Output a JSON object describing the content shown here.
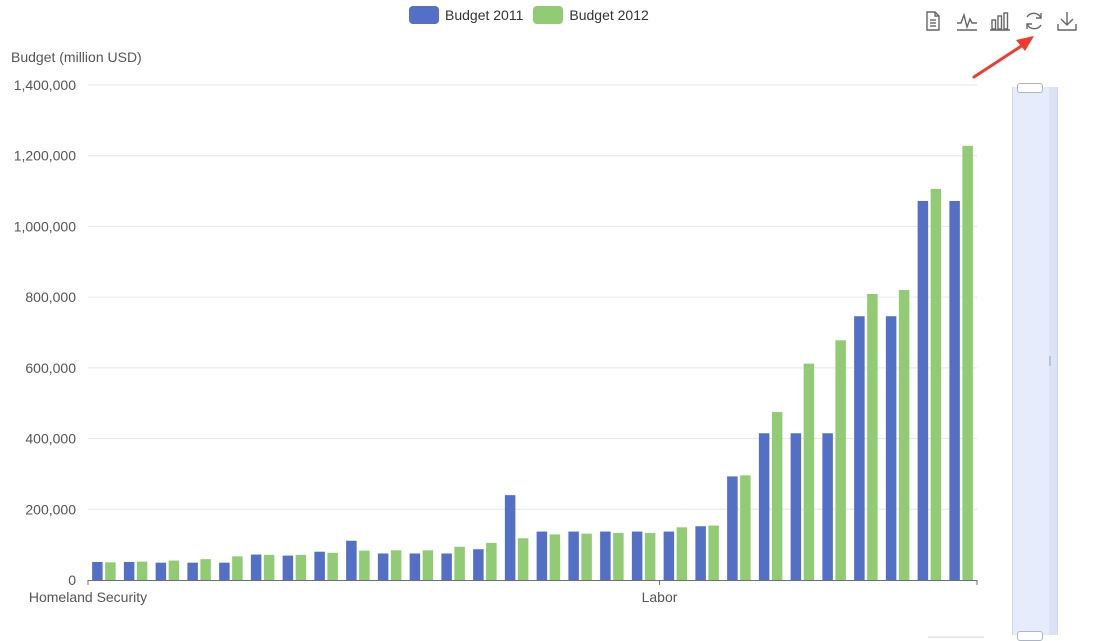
{
  "chart_data": {
    "type": "bar",
    "ylabel": "Budget (million USD)",
    "ylim": [
      0,
      1400000
    ],
    "yticks": [
      0,
      200000,
      400000,
      600000,
      800000,
      1000000,
      1200000,
      1400000
    ],
    "ytick_labels": [
      "0",
      "200,000",
      "400,000",
      "600,000",
      "800,000",
      "1,000,000",
      "1,200,000",
      "1,400,000"
    ],
    "grid": true,
    "legend_position": "top-center",
    "xtick_labels": [
      {
        "index": 0,
        "label": "Homeland Security"
      },
      {
        "index": 18,
        "label": "Labor"
      }
    ],
    "categories_count": 28,
    "series": [
      {
        "name": "Budget 2011",
        "color": "#5470c6",
        "values": [
          51000,
          51000,
          49000,
          49000,
          49000,
          72000,
          69000,
          80000,
          111000,
          75000,
          75000,
          75000,
          87000,
          240000,
          137000,
          137000,
          137000,
          137000,
          137000,
          152000,
          293000,
          415000,
          415000,
          415000,
          746000,
          746000,
          1072000,
          1072000
        ]
      },
      {
        "name": "Budget 2012",
        "color": "#91cc75",
        "values": [
          50000,
          52000,
          55000,
          59000,
          67000,
          71000,
          71000,
          77000,
          83000,
          84000,
          84000,
          94000,
          105000,
          118000,
          129000,
          131000,
          133000,
          133000,
          149000,
          154000,
          296000,
          475000,
          612000,
          678000,
          809000,
          820000,
          1106000,
          1228000
        ]
      }
    ]
  },
  "toolbox": {
    "icons": [
      "data-view-icon",
      "line-chart-icon",
      "bar-chart-icon",
      "restore-icon",
      "download-icon"
    ]
  },
  "data_zoom": {
    "orientation": "vertical",
    "start_fraction": 0,
    "end_fraction": 1
  }
}
